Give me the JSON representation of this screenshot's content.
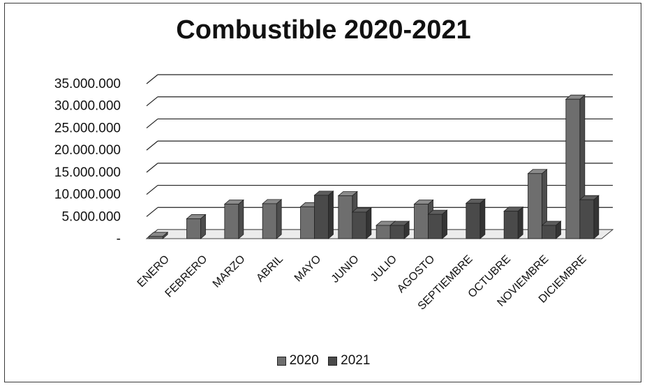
{
  "chart_data": {
    "type": "bar",
    "title": "Combustible 2020-2021",
    "categories": [
      "ENERO",
      "FEBRERO",
      "MARZO",
      "ABRIL",
      "MAYO",
      "JUNIO",
      "JULIO",
      "AGOSTO",
      "SEPTIEMBRE",
      "OCTUBRE",
      "NOVIEMBRE",
      "DICIEMBRE"
    ],
    "series": [
      {
        "name": "2020",
        "color": "#6e6e6e",
        "values": [
          500000,
          4500000,
          7800000,
          7900000,
          7200000,
          9700000,
          3000000,
          7800000,
          0,
          0,
          14700000,
          31500000
        ]
      },
      {
        "name": "2021",
        "color": "#4a4a4a",
        "values": [
          0,
          0,
          0,
          0,
          9800000,
          6000000,
          3000000,
          5500000,
          8000000,
          6200000,
          3000000,
          8800000
        ]
      }
    ],
    "ylim": [
      0,
      35000000
    ],
    "yticks": [
      "-",
      "5.000.000",
      "10.000.000",
      "15.000.000",
      "20.000.000",
      "25.000.000",
      "30.000.000",
      "35.000.000"
    ],
    "grid": true,
    "legend": "bottom"
  }
}
